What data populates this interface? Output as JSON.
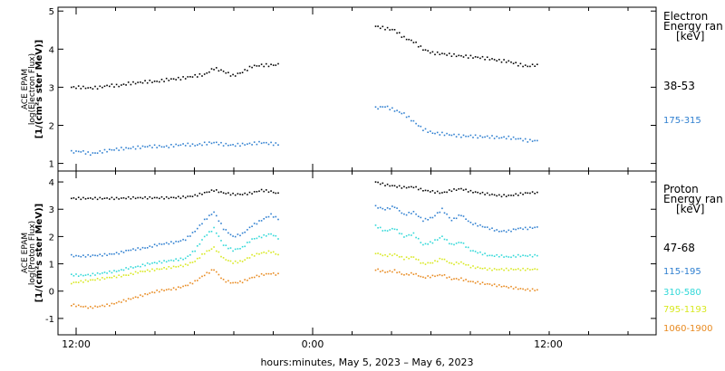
{
  "chart_data": [
    {
      "type": "scatter",
      "panel": "electron",
      "ylabel_lines": [
        "ACE EPAM",
        "log(Electron Flux)",
        "[1/(cm²s ster MeV)]"
      ],
      "ylim": [
        0.8,
        5.1
      ],
      "yticks": [
        "1",
        "2",
        "3",
        "4",
        "5"
      ],
      "legend_title": [
        "Electron",
        "Energy ran",
        "[keV]"
      ],
      "series": [
        {
          "name": "38-53",
          "color": "#000000",
          "values": [
            3.0,
            3.0,
            2.98,
            3.0,
            3.05,
            3.04,
            3.1,
            3.12,
            3.15,
            3.15,
            3.2,
            3.22,
            3.25,
            3.3,
            3.33,
            3.5,
            3.42,
            3.3,
            3.4,
            3.55,
            3.58,
            3.58,
            3.6,
            null,
            null,
            null,
            null,
            null,
            null,
            null,
            null,
            null,
            4.6,
            4.55,
            4.5,
            4.3,
            4.2,
            4.0,
            3.9,
            3.88,
            3.85,
            3.82,
            3.8,
            3.78,
            3.75,
            3.7,
            3.68,
            3.6,
            3.55,
            3.6
          ]
        },
        {
          "name": "175-315",
          "color": "#2f7fd0",
          "values": [
            1.3,
            1.32,
            1.25,
            1.3,
            1.35,
            1.38,
            1.4,
            1.42,
            1.45,
            1.45,
            1.44,
            1.48,
            1.5,
            1.48,
            1.52,
            1.55,
            1.5,
            1.48,
            1.5,
            1.52,
            1.55,
            1.52,
            1.5,
            null,
            null,
            null,
            null,
            null,
            null,
            null,
            null,
            null,
            2.45,
            2.5,
            2.4,
            2.3,
            2.1,
            1.9,
            1.8,
            1.78,
            1.75,
            1.72,
            1.72,
            1.7,
            1.7,
            1.68,
            1.68,
            1.65,
            1.6,
            1.6
          ]
        }
      ]
    },
    {
      "type": "scatter",
      "panel": "proton",
      "ylabel_lines": [
        "ACE EPAM",
        "log(Proton Flux)",
        "[1/(cm²s ster MeV)]"
      ],
      "ylim": [
        -1.6,
        4.4
      ],
      "yticks": [
        "-1",
        "0",
        "1",
        "2",
        "3",
        "4"
      ],
      "legend_title": [
        "Proton",
        "Energy ran",
        "[keV]"
      ],
      "series": [
        {
          "name": "47-68",
          "color": "#000000",
          "values": [
            3.4,
            3.4,
            3.4,
            3.4,
            3.4,
            3.4,
            3.42,
            3.42,
            3.42,
            3.42,
            3.42,
            3.43,
            3.45,
            3.5,
            3.6,
            3.7,
            3.6,
            3.55,
            3.55,
            3.6,
            3.7,
            3.65,
            3.55,
            null,
            null,
            null,
            null,
            null,
            null,
            null,
            null,
            null,
            4.0,
            3.9,
            3.85,
            3.8,
            3.82,
            3.7,
            3.65,
            3.6,
            3.7,
            3.75,
            3.65,
            3.6,
            3.55,
            3.5,
            3.5,
            3.55,
            3.6,
            3.62
          ]
        },
        {
          "name": "115-195",
          "color": "#2f7fd0",
          "values": [
            1.3,
            1.28,
            1.3,
            1.32,
            1.35,
            1.4,
            1.5,
            1.55,
            1.6,
            1.7,
            1.75,
            1.8,
            1.9,
            2.2,
            2.6,
            2.9,
            2.3,
            2.0,
            2.1,
            2.4,
            2.6,
            2.8,
            2.6,
            null,
            null,
            null,
            null,
            null,
            null,
            null,
            null,
            null,
            3.1,
            3.0,
            3.1,
            2.8,
            2.9,
            2.6,
            2.7,
            3.0,
            2.6,
            2.8,
            2.5,
            2.4,
            2.3,
            2.2,
            2.2,
            2.3,
            2.3,
            2.35
          ]
        },
        {
          "name": "310-580",
          "color": "#30d8d8",
          "values": [
            0.6,
            0.58,
            0.6,
            0.65,
            0.7,
            0.75,
            0.85,
            0.9,
            1.0,
            1.05,
            1.1,
            1.15,
            1.2,
            1.5,
            2.0,
            2.3,
            1.7,
            1.5,
            1.6,
            1.9,
            2.0,
            2.1,
            1.9,
            null,
            null,
            null,
            null,
            null,
            null,
            null,
            null,
            null,
            2.4,
            2.2,
            2.3,
            2.0,
            2.1,
            1.7,
            1.8,
            2.0,
            1.7,
            1.8,
            1.5,
            1.4,
            1.3,
            1.3,
            1.25,
            1.3,
            1.3,
            1.3
          ]
        },
        {
          "name": "795-1193",
          "color": "#d8e820",
          "values": [
            0.3,
            0.35,
            0.4,
            0.45,
            0.5,
            0.55,
            0.6,
            0.7,
            0.75,
            0.8,
            0.85,
            0.9,
            0.95,
            1.1,
            1.4,
            1.6,
            1.2,
            1.05,
            1.1,
            1.3,
            1.4,
            1.45,
            1.3,
            null,
            null,
            null,
            null,
            null,
            null,
            null,
            null,
            null,
            1.4,
            1.3,
            1.35,
            1.2,
            1.25,
            1.0,
            1.05,
            1.2,
            1.0,
            1.05,
            0.9,
            0.85,
            0.8,
            0.8,
            0.8,
            0.8,
            0.8,
            0.8
          ]
        },
        {
          "name": "1060-1900",
          "color": "#e88a20",
          "values": [
            -0.5,
            -0.55,
            -0.6,
            -0.55,
            -0.5,
            -0.4,
            -0.3,
            -0.2,
            -0.1,
            0.0,
            0.05,
            0.1,
            0.2,
            0.35,
            0.6,
            0.8,
            0.4,
            0.3,
            0.35,
            0.5,
            0.6,
            0.65,
            0.6,
            null,
            null,
            null,
            null,
            null,
            null,
            null,
            null,
            null,
            0.8,
            0.7,
            0.75,
            0.6,
            0.65,
            0.5,
            0.55,
            0.6,
            0.45,
            0.45,
            0.35,
            0.3,
            0.25,
            0.2,
            0.15,
            0.1,
            0.05,
            0.05
          ]
        }
      ]
    }
  ],
  "x_ticks": [
    "12:00",
    "0:00",
    "12:00"
  ],
  "xlabel": "hours:minutes,  May  5, 2023 – May  6, 2023"
}
